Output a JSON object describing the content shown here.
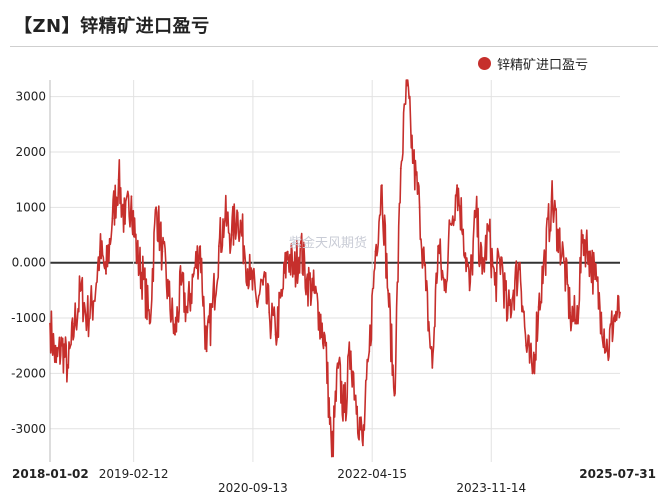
{
  "title": "【ZN】锌精矿进口盈亏",
  "watermark": "紫金天风期货",
  "colors": {
    "series": "#c62f2c",
    "grid": "#e2e2e2",
    "zero_line": "#333333"
  },
  "chart_data": {
    "type": "line",
    "title": "【ZN】锌精矿进口盈亏",
    "xlabel": "",
    "ylabel": "",
    "ylim": [
      -3600,
      3300
    ],
    "yticks": [
      {
        "value": 3000,
        "label": "3000"
      },
      {
        "value": 2000,
        "label": "2000"
      },
      {
        "value": 1000,
        "label": "1000"
      },
      {
        "value": 0,
        "label": "0.000"
      },
      {
        "value": -1000,
        "label": "-1000"
      },
      {
        "value": -2000,
        "label": "-2000"
      },
      {
        "value": -3000,
        "label": "-3000"
      }
    ],
    "x_range": [
      "2018-01-02",
      "2025-07-31"
    ],
    "xticks": [
      {
        "date": "2018-01-02",
        "label": "2018-01-02",
        "row": 0,
        "bold": true
      },
      {
        "date": "2019-02-12",
        "label": "2019-02-12",
        "row": 0,
        "bold": false
      },
      {
        "date": "2020-09-13",
        "label": "2020-09-13",
        "row": 1,
        "bold": false
      },
      {
        "date": "2022-04-15",
        "label": "2022-04-15",
        "row": 0,
        "bold": false
      },
      {
        "date": "2023-11-14",
        "label": "2023-11-14",
        "row": 1,
        "bold": false
      },
      {
        "date": "2025-07-31",
        "label": "2025-07-31",
        "row": 0,
        "bold": true
      }
    ],
    "grid": true,
    "legend_position": "top-right",
    "series": [
      {
        "name": "锌精矿进口盈亏",
        "points": [
          [
            "2018-01-02",
            -1100
          ],
          [
            "2018-02-01",
            -1800
          ],
          [
            "2018-03-01",
            -1500
          ],
          [
            "2018-04-01",
            -1900
          ],
          [
            "2018-05-01",
            -1100
          ],
          [
            "2018-06-01",
            -500
          ],
          [
            "2018-07-01",
            -1000
          ],
          [
            "2018-08-01",
            -700
          ],
          [
            "2018-09-01",
            200
          ],
          [
            "2018-10-01",
            -200
          ],
          [
            "2018-11-01",
            800
          ],
          [
            "2018-12-01",
            1500
          ],
          [
            "2019-01-01",
            700
          ],
          [
            "2019-02-01",
            1200
          ],
          [
            "2019-03-01",
            100
          ],
          [
            "2019-04-01",
            -300
          ],
          [
            "2019-05-01",
            -1100
          ],
          [
            "2019-06-01",
            1000
          ],
          [
            "2019-07-01",
            200
          ],
          [
            "2019-08-01",
            -600
          ],
          [
            "2019-09-01",
            -1300
          ],
          [
            "2019-10-01",
            -400
          ],
          [
            "2019-11-01",
            -900
          ],
          [
            "2019-12-01",
            -200
          ],
          [
            "2020-01-01",
            300
          ],
          [
            "2020-02-01",
            -1600
          ],
          [
            "2020-03-01",
            -800
          ],
          [
            "2020-04-01",
            300
          ],
          [
            "2020-05-01",
            800
          ],
          [
            "2020-06-01",
            500
          ],
          [
            "2020-07-01",
            900
          ],
          [
            "2020-08-01",
            300
          ],
          [
            "2020-09-01",
            -300
          ],
          [
            "2020-10-01",
            -700
          ],
          [
            "2020-11-01",
            -400
          ],
          [
            "2020-12-01",
            -900
          ],
          [
            "2021-01-01",
            -1300
          ],
          [
            "2021-02-01",
            -600
          ],
          [
            "2021-03-01",
            200
          ],
          [
            "2021-04-01",
            -200
          ],
          [
            "2021-05-01",
            300
          ],
          [
            "2021-06-01",
            -300
          ],
          [
            "2021-07-01",
            -500
          ],
          [
            "2021-08-01",
            -900
          ],
          [
            "2021-09-01",
            -1500
          ],
          [
            "2021-10-01",
            -3500
          ],
          [
            "2021-11-01",
            -1900
          ],
          [
            "2021-12-01",
            -2700
          ],
          [
            "2022-01-01",
            -1600
          ],
          [
            "2022-02-01",
            -2600
          ],
          [
            "2022-03-01",
            -3300
          ],
          [
            "2022-04-01",
            -1600
          ],
          [
            "2022-05-01",
            200
          ],
          [
            "2022-06-01",
            1400
          ],
          [
            "2022-07-01",
            -500
          ],
          [
            "2022-08-01",
            -2400
          ],
          [
            "2022-09-01",
            1700
          ],
          [
            "2022-10-01",
            3200
          ],
          [
            "2022-11-01",
            1800
          ],
          [
            "2022-12-01",
            1000
          ],
          [
            "2023-01-01",
            -500
          ],
          [
            "2023-02-01",
            -1900
          ],
          [
            "2023-03-01",
            300
          ],
          [
            "2023-04-01",
            -500
          ],
          [
            "2023-05-01",
            700
          ],
          [
            "2023-06-01",
            1400
          ],
          [
            "2023-07-01",
            600
          ],
          [
            "2023-08-01",
            -500
          ],
          [
            "2023-09-01",
            900
          ],
          [
            "2023-10-01",
            -200
          ],
          [
            "2023-11-01",
            600
          ],
          [
            "2023-12-01",
            -400
          ],
          [
            "2024-01-01",
            100
          ],
          [
            "2024-02-01",
            -1000
          ],
          [
            "2024-03-01",
            -500
          ],
          [
            "2024-04-01",
            0
          ],
          [
            "2024-05-01",
            -1500
          ],
          [
            "2024-06-01",
            -2000
          ],
          [
            "2024-07-01",
            -800
          ],
          [
            "2024-08-01",
            100
          ],
          [
            "2024-09-01",
            1100
          ],
          [
            "2024-10-01",
            600
          ],
          [
            "2024-11-01",
            0
          ],
          [
            "2024-12-01",
            -900
          ],
          [
            "2025-01-01",
            -1100
          ],
          [
            "2025-02-01",
            500
          ],
          [
            "2025-03-01",
            200
          ],
          [
            "2025-04-01",
            -300
          ],
          [
            "2025-05-01",
            -900
          ],
          [
            "2025-06-01",
            -1600
          ],
          [
            "2025-07-01",
            -1000
          ],
          [
            "2025-07-31",
            -900
          ]
        ]
      }
    ]
  }
}
